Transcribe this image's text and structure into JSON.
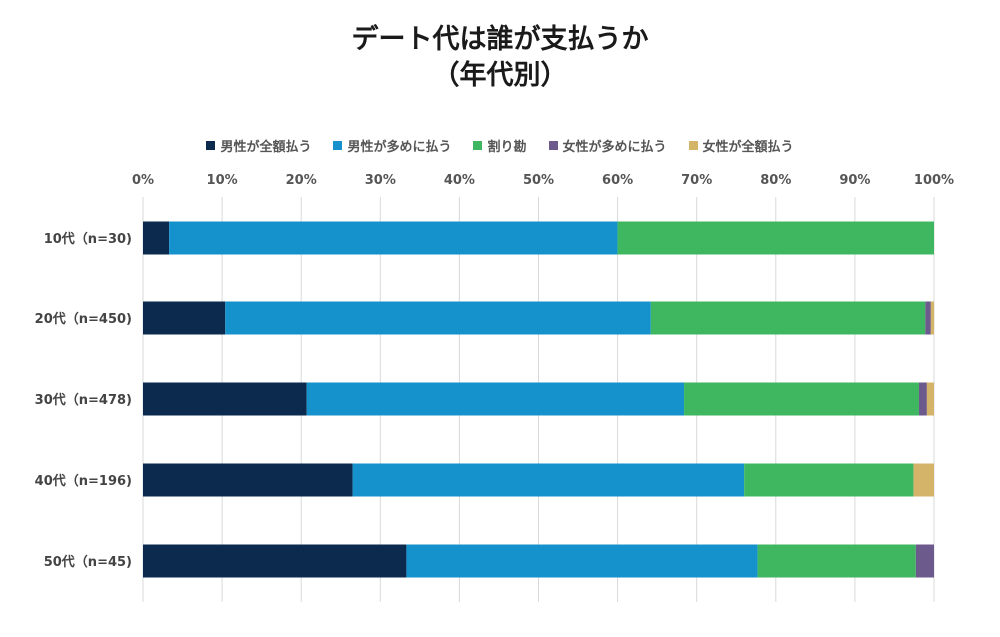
{
  "chart_data": {
    "type": "bar",
    "orientation": "horizontal",
    "stacked": true,
    "title_line1": "デート代は誰が支払うか",
    "title_line2": "（年代別）",
    "categories": [
      "10代（n=30)",
      "20代（n=450)",
      "30代（n=478)",
      "40代（n=196)",
      "50代（n=45)"
    ],
    "x_ticks": [
      "0%",
      "10%",
      "20%",
      "30%",
      "40%",
      "50%",
      "60%",
      "70%",
      "80%",
      "90%",
      "100%"
    ],
    "xlim": [
      0,
      100
    ],
    "legend_position": "top",
    "series": [
      {
        "name": "男性が全額払う",
        "color": "#0b2a4e",
        "values": [
          3.3,
          10.4,
          20.7,
          26.5,
          33.3
        ]
      },
      {
        "name": "男性が多めに払う",
        "color": "#1591cc",
        "values": [
          56.7,
          53.8,
          47.7,
          49.5,
          44.4
        ]
      },
      {
        "name": "割り勘",
        "color": "#3fb761",
        "values": [
          40.0,
          34.7,
          29.7,
          21.4,
          20.0
        ]
      },
      {
        "name": "女性が多めに払う",
        "color": "#6c5a8c",
        "values": [
          0.0,
          0.7,
          1.0,
          0.0,
          2.3
        ]
      },
      {
        "name": "女性が全額払う",
        "color": "#d4b468",
        "values": [
          0.0,
          0.4,
          0.9,
          2.6,
          0.0
        ]
      }
    ]
  }
}
